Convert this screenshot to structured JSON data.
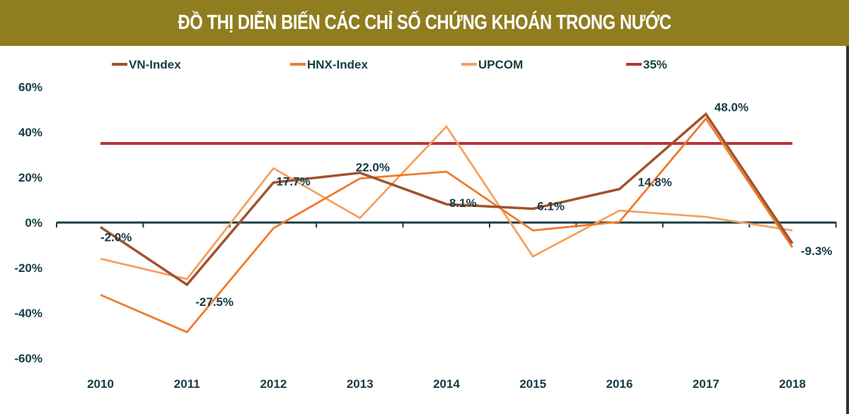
{
  "chart_data": {
    "type": "line",
    "title": "ĐỒ THỊ DIỄN BIẾN CÁC CHỈ SỐ CHỨNG KHOÁN TRONG NƯỚC",
    "categories": [
      "2010",
      "2011",
      "2012",
      "2013",
      "2014",
      "2015",
      "2016",
      "2017",
      "2018"
    ],
    "ylim": [
      -60,
      60
    ],
    "yticks": [
      60,
      40,
      20,
      0,
      -20,
      -40,
      -60
    ],
    "ytick_labels": [
      "60%",
      "40%",
      "20%",
      "0%",
      "-20%",
      "-40%",
      "-60%"
    ],
    "grid": false,
    "legend_position": "top",
    "series": [
      {
        "name": "VN-Index",
        "color": "#a0522d",
        "values": [
          -2.0,
          -27.5,
          17.7,
          22.0,
          8.1,
          6.1,
          14.8,
          48.0,
          -9.3
        ],
        "data_labels": [
          "-2.0%",
          "-27.5%",
          "17.7%",
          "22.0%",
          "8.1%",
          "6.1%",
          "14.8%",
          "48.0%",
          "-9.3%"
        ]
      },
      {
        "name": "HNX-Index",
        "color": "#f07a2a",
        "values": [
          -32,
          -48.5,
          -2.5,
          19.5,
          22.5,
          -3.5,
          0.3,
          46,
          -11
        ]
      },
      {
        "name": "UPCOM",
        "color": "#f5a060",
        "values": [
          -16,
          -25,
          24,
          2,
          42.5,
          -15,
          5.3,
          2.5,
          -3.5
        ]
      },
      {
        "name": "35%",
        "color": "#b8343a",
        "values": [
          35,
          35,
          35,
          35,
          35,
          35,
          35,
          35,
          35
        ]
      }
    ]
  }
}
